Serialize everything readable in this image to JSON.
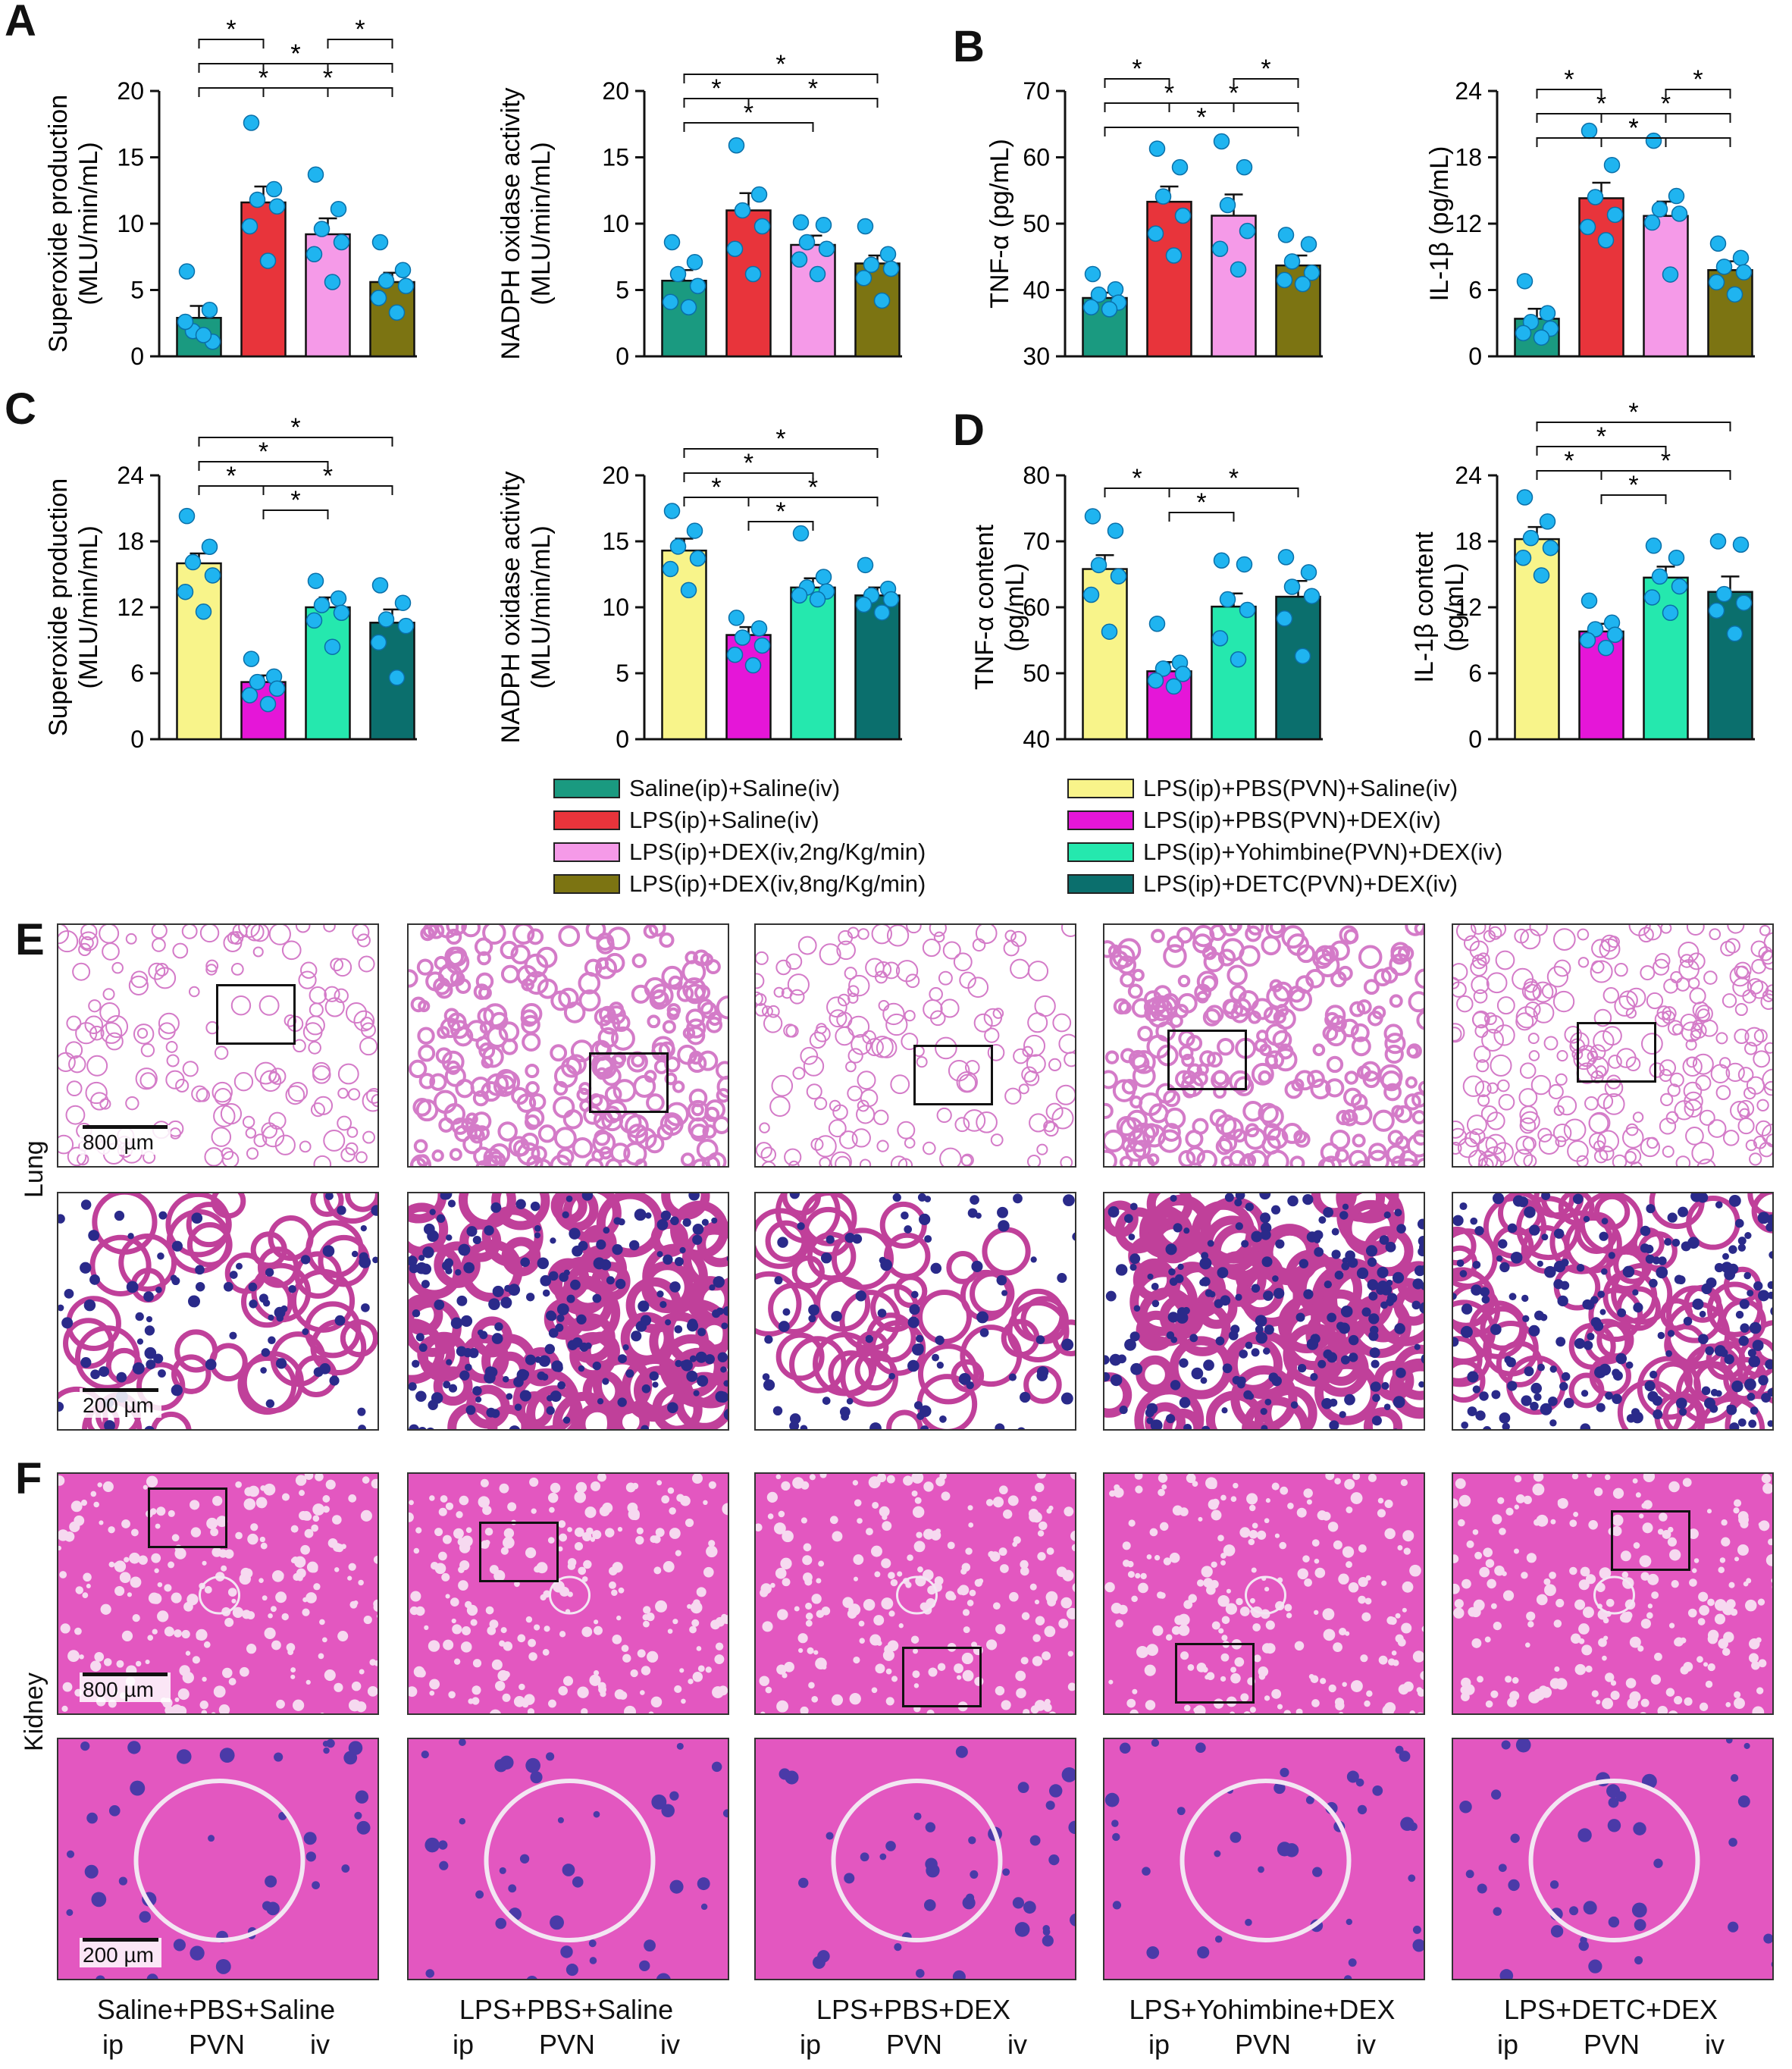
{
  "panel_letters": [
    "A",
    "B",
    "C",
    "D",
    "E",
    "F"
  ],
  "colors": {
    "saline_saline": "#1a9a80",
    "lps_saline": "#e8343b",
    "lps_dex2": "#f59ae8",
    "lps_dex8": "#7c7412",
    "pbs_saline": "#f8f48a",
    "pbs_dex": "#e516d8",
    "yoh_dex": "#25e8ae",
    "detc_dex": "#0b6f6d",
    "dots": "#1fb4f0"
  },
  "legend": {
    "left": [
      {
        "label": "Saline(ip)+Saline(iv)",
        "color_key": "saline_saline"
      },
      {
        "label": "LPS(ip)+Saline(iv)",
        "color_key": "lps_saline"
      },
      {
        "label": "LPS(ip)+DEX(iv,2ng/Kg/min)",
        "color_key": "lps_dex2"
      },
      {
        "label": "LPS(ip)+DEX(iv,8ng/Kg/min)",
        "color_key": "lps_dex8"
      }
    ],
    "right": [
      {
        "label": "LPS(ip)+PBS(PVN)+Saline(iv)",
        "color_key": "pbs_saline"
      },
      {
        "label": "LPS(ip)+PBS(PVN)+DEX(iv)",
        "color_key": "pbs_dex"
      },
      {
        "label": "LPS(ip)+Yohimbine(PVN)+DEX(iv)",
        "color_key": "yoh_dex"
      },
      {
        "label": "LPS(ip)+DETC(PVN)+DEX(iv)",
        "color_key": "detc_dex"
      }
    ]
  },
  "chart_data": [
    {
      "id": "A1",
      "type": "bar",
      "ylabel": [
        "Superoxide production",
        "(MLU/min/mL)"
      ],
      "ylim": [
        0,
        20
      ],
      "yticks": [
        0,
        5,
        10,
        15,
        20
      ],
      "color_keys": [
        "saline_saline",
        "lps_saline",
        "lps_dex2",
        "lps_dex8"
      ],
      "values": [
        2.9,
        11.6,
        9.2,
        5.6
      ],
      "errors": [
        0.9,
        1.2,
        1.2,
        0.7
      ],
      "points": [
        [
          6.4,
          3.5,
          1.9,
          1.1,
          2.6,
          1.6
        ],
        [
          17.6,
          12.6,
          11.8,
          11.3,
          9.8,
          7.2
        ],
        [
          13.7,
          11.1,
          9.6,
          8.6,
          7.7,
          5.6
        ],
        [
          8.6,
          6.5,
          5.7,
          5.3,
          4.4,
          3.3
        ]
      ],
      "significance": [
        {
          "from": 0,
          "to": 2,
          "level": 1
        },
        {
          "from": 1,
          "to": 3,
          "level": 1
        },
        {
          "from": 0,
          "to": 3,
          "level": 2
        },
        {
          "from": 1,
          "to": 2,
          "level": 2
        },
        {
          "from": 0,
          "to": 1,
          "level": 3
        },
        {
          "from": 2,
          "to": 3,
          "level": 3
        }
      ],
      "star": "*"
    },
    {
      "id": "A2",
      "type": "bar",
      "ylabel": [
        "NADPH oxidase activity",
        "(MLU/min/mL)"
      ],
      "ylim": [
        0,
        20
      ],
      "yticks": [
        0,
        5,
        10,
        15,
        20
      ],
      "color_keys": [
        "saline_saline",
        "lps_saline",
        "lps_dex2",
        "lps_dex8"
      ],
      "values": [
        5.7,
        11.0,
        8.4,
        7.0
      ],
      "errors": [
        0.8,
        1.3,
        0.7,
        0.6
      ],
      "points": [
        [
          8.6,
          7.1,
          6.2,
          5.3,
          4.1,
          3.7
        ],
        [
          15.9,
          12.2,
          11.0,
          9.8,
          8.1,
          6.2
        ],
        [
          10.1,
          9.9,
          8.6,
          8.1,
          7.3,
          6.2
        ],
        [
          9.8,
          7.7,
          6.9,
          6.6,
          5.9,
          4.2
        ]
      ],
      "significance": [
        {
          "from": 0,
          "to": 2,
          "level": 1
        },
        {
          "from": 0,
          "to": 1,
          "level": 2
        },
        {
          "from": 1,
          "to": 3,
          "level": 2
        },
        {
          "from": 0,
          "to": 3,
          "level": 3
        }
      ],
      "star": "*"
    },
    {
      "id": "B1",
      "type": "bar",
      "ylabel": [
        "TNF-α (pg/mL)"
      ],
      "ylim": [
        30,
        70
      ],
      "yticks": [
        30,
        40,
        50,
        60,
        70
      ],
      "color_keys": [
        "saline_saline",
        "lps_saline",
        "lps_dex2",
        "lps_dex8"
      ],
      "values": [
        38.8,
        53.3,
        51.2,
        43.7
      ],
      "errors": [
        0.8,
        2.3,
        3.2,
        1.5
      ],
      "points": [
        [
          42.4,
          40.1,
          39.3,
          38.1,
          37.4,
          37.1
        ],
        [
          61.3,
          58.5,
          54.1,
          51.2,
          48.5,
          45.2
        ],
        [
          62.4,
          58.5,
          52.8,
          48.9,
          46.2,
          43.1
        ],
        [
          48.3,
          46.9,
          44.3,
          42.6,
          41.5,
          40.9
        ]
      ],
      "significance": [
        {
          "from": 0,
          "to": 3,
          "level": 1
        },
        {
          "from": 0,
          "to": 2,
          "level": 2
        },
        {
          "from": 1,
          "to": 3,
          "level": 2
        },
        {
          "from": 0,
          "to": 1,
          "level": 3
        },
        {
          "from": 2,
          "to": 3,
          "level": 3
        }
      ],
      "star": "*"
    },
    {
      "id": "B2",
      "type": "bar",
      "ylabel": [
        "IL-1β (pg/mL)"
      ],
      "ylim": [
        0,
        24
      ],
      "yticks": [
        0,
        6,
        12,
        18,
        24
      ],
      "color_keys": [
        "saline_saline",
        "lps_saline",
        "lps_dex2",
        "lps_dex8"
      ],
      "values": [
        3.4,
        14.3,
        12.7,
        7.8
      ],
      "errors": [
        0.9,
        1.4,
        1.3,
        0.8
      ],
      "points": [
        [
          6.8,
          3.9,
          3.1,
          2.5,
          2.1,
          1.7
        ],
        [
          20.4,
          17.3,
          14.4,
          12.8,
          11.7,
          10.5
        ],
        [
          19.5,
          14.5,
          13.3,
          12.9,
          12.1,
          7.4
        ],
        [
          10.2,
          8.9,
          8.1,
          7.6,
          6.7,
          5.6
        ]
      ],
      "significance": [
        {
          "from": 0,
          "to": 3,
          "level": 1
        },
        {
          "from": 1,
          "to": 2,
          "level": 1
        },
        {
          "from": 0,
          "to": 2,
          "level": 2
        },
        {
          "from": 1,
          "to": 3,
          "level": 2
        },
        {
          "from": 0,
          "to": 1,
          "level": 3
        },
        {
          "from": 2,
          "to": 3,
          "level": 3
        }
      ],
      "star": "*"
    },
    {
      "id": "C1",
      "type": "bar",
      "ylabel": [
        "Superoxide production",
        "(MLU/min/mL)"
      ],
      "ylim": [
        0,
        24
      ],
      "yticks": [
        0,
        6,
        12,
        18,
        24
      ],
      "color_keys": [
        "pbs_saline",
        "pbs_dex",
        "yoh_dex",
        "detc_dex"
      ],
      "values": [
        16.0,
        5.2,
        12.0,
        10.6
      ],
      "errors": [
        0.9,
        0.6,
        0.9,
        1.2
      ],
      "points": [
        [
          20.3,
          17.5,
          16.1,
          14.9,
          13.4,
          11.6
        ],
        [
          7.3,
          5.7,
          5.2,
          4.6,
          4.0,
          3.2
        ],
        [
          14.4,
          12.8,
          12.2,
          11.5,
          10.8,
          8.4
        ],
        [
          14.0,
          12.4,
          10.9,
          10.3,
          8.8,
          5.6
        ]
      ],
      "significance": [
        {
          "from": 1,
          "to": 2,
          "level": 1
        },
        {
          "from": 0,
          "to": 1,
          "level": 2
        },
        {
          "from": 1,
          "to": 3,
          "level": 2
        },
        {
          "from": 0,
          "to": 2,
          "level": 3
        },
        {
          "from": 0,
          "to": 3,
          "level": 4
        }
      ],
      "star": "*"
    },
    {
      "id": "C2",
      "type": "bar",
      "ylabel": [
        "NADPH oxidase activity",
        "(MLU/min/mL)"
      ],
      "ylim": [
        0,
        20
      ],
      "yticks": [
        0,
        5,
        10,
        15,
        20
      ],
      "color_keys": [
        "pbs_saline",
        "pbs_dex",
        "yoh_dex",
        "detc_dex"
      ],
      "values": [
        14.3,
        7.9,
        11.5,
        10.9
      ],
      "errors": [
        0.9,
        0.6,
        0.7,
        0.6
      ],
      "points": [
        [
          17.3,
          15.8,
          14.6,
          13.7,
          12.9,
          11.3
        ],
        [
          9.2,
          8.4,
          7.7,
          7.1,
          6.4,
          5.6
        ],
        [
          15.6,
          12.3,
          11.5,
          11.2,
          10.9,
          10.6
        ],
        [
          13.2,
          11.4,
          10.9,
          10.6,
          10.2,
          9.6
        ]
      ],
      "significance": [
        {
          "from": 1,
          "to": 2,
          "level": 1
        },
        {
          "from": 0,
          "to": 1,
          "level": 2
        },
        {
          "from": 1,
          "to": 3,
          "level": 2
        },
        {
          "from": 0,
          "to": 2,
          "level": 3
        },
        {
          "from": 0,
          "to": 3,
          "level": 4
        }
      ],
      "star": "*"
    },
    {
      "id": "D1",
      "type": "bar",
      "ylabel": [
        "TNF-α content",
        "(pg/mL)"
      ],
      "ylim": [
        40,
        80
      ],
      "yticks": [
        40,
        50,
        60,
        70,
        80
      ],
      "color_keys": [
        "pbs_saline",
        "pbs_dex",
        "yoh_dex",
        "detc_dex"
      ],
      "values": [
        65.8,
        50.3,
        60.1,
        61.6
      ],
      "errors": [
        2.1,
        1.4,
        2.0,
        2.4
      ],
      "points": [
        [
          73.8,
          71.6,
          66.4,
          64.7,
          61.9,
          56.3
        ],
        [
          57.5,
          51.6,
          50.7,
          49.9,
          48.9,
          48.0
        ],
        [
          67.1,
          66.5,
          61.2,
          59.6,
          55.3,
          52.1
        ],
        [
          67.6,
          65.3,
          63.1,
          61.7,
          58.3,
          52.6
        ]
      ],
      "significance": [
        {
          "from": 1,
          "to": 2,
          "level": 1
        },
        {
          "from": 0,
          "to": 1,
          "level": 2
        },
        {
          "from": 1,
          "to": 3,
          "level": 2
        }
      ],
      "star": "*"
    },
    {
      "id": "D2",
      "type": "bar",
      "ylabel": [
        "IL-1β content",
        "(pg/mL)"
      ],
      "ylim": [
        0,
        24
      ],
      "yticks": [
        0,
        6,
        12,
        18,
        24
      ],
      "color_keys": [
        "pbs_saline",
        "pbs_dex",
        "yoh_dex",
        "detc_dex"
      ],
      "values": [
        18.2,
        9.8,
        14.7,
        13.4
      ],
      "errors": [
        1.1,
        0.7,
        1.0,
        1.4
      ],
      "points": [
        [
          22.0,
          19.8,
          18.3,
          17.4,
          16.5,
          14.9
        ],
        [
          12.6,
          10.6,
          10.0,
          9.5,
          9.0,
          8.3
        ],
        [
          17.6,
          16.5,
          14.8,
          13.9,
          12.9,
          11.5
        ],
        [
          18.0,
          17.7,
          13.2,
          12.4,
          11.7,
          9.6
        ]
      ],
      "significance": [
        {
          "from": 1,
          "to": 2,
          "level": 1
        },
        {
          "from": 0,
          "to": 1,
          "level": 2
        },
        {
          "from": 1,
          "to": 3,
          "level": 2
        },
        {
          "from": 0,
          "to": 2,
          "level": 3
        },
        {
          "from": 0,
          "to": 3,
          "level": 4
        }
      ],
      "star": "*"
    }
  ],
  "histology": {
    "lung_label": "Lung",
    "kidney_label": "Kidney",
    "scale_800": "800 µm",
    "scale_200": "200 µm",
    "groups": [
      {
        "caption": "Saline+PBS+Saline",
        "routes": [
          "ip",
          "PVN",
          "iv"
        ]
      },
      {
        "caption": "LPS+PBS+Saline",
        "routes": [
          "ip",
          "PVN",
          "iv"
        ]
      },
      {
        "caption": "LPS+PBS+DEX",
        "routes": [
          "ip",
          "PVN",
          "iv"
        ]
      },
      {
        "caption": "LPS+Yohimbine+DEX",
        "routes": [
          "ip",
          "PVN",
          "iv"
        ]
      },
      {
        "caption": "LPS+DETC+DEX",
        "routes": [
          "ip",
          "PVN",
          "iv"
        ]
      }
    ]
  }
}
